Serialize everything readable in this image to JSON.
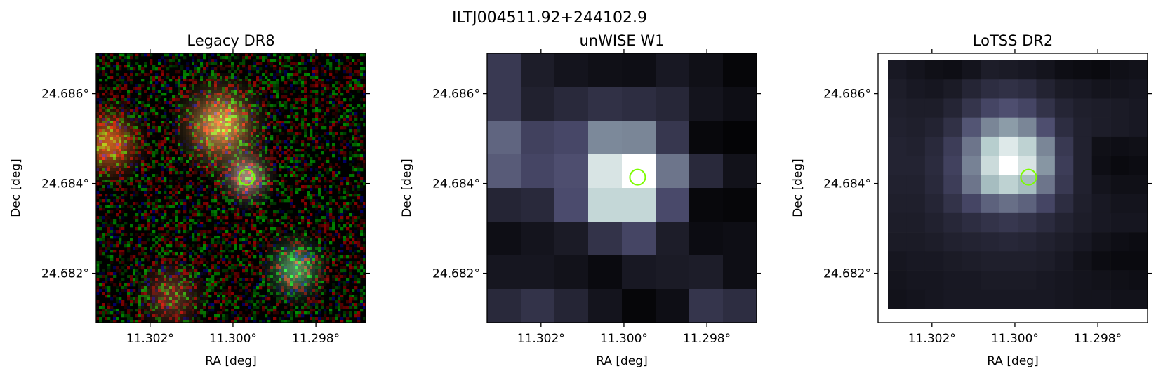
{
  "figure": {
    "suptitle": "ILTJ004511.92+244102.9",
    "marker_color": "#7cfc00"
  },
  "axes": {
    "xlabel": "RA [deg]",
    "ylabel": "Dec [deg]",
    "xticks": [
      {
        "value": 11.302,
        "label": "11.302°"
      },
      {
        "value": 11.3,
        "label": "11.300°"
      },
      {
        "value": 11.298,
        "label": "11.298°"
      }
    ],
    "yticks": [
      {
        "value": 24.686,
        "label": "24.686°"
      },
      {
        "value": 24.684,
        "label": "24.684°"
      },
      {
        "value": 24.682,
        "label": "24.682°"
      }
    ],
    "ra_range": [
      11.3033,
      11.2968
    ],
    "dec_range": [
      24.6809,
      24.6869
    ]
  },
  "source_position": {
    "ra": 11.29967,
    "dec": 24.68414
  },
  "panels": [
    {
      "id": "legacy",
      "title": "Legacy DR8"
    },
    {
      "id": "unwise",
      "title": "unWISE W1"
    },
    {
      "id": "lotss",
      "title": "LoTSS DR2"
    }
  ],
  "unwise_grid": [
    [
      0.28,
      0.14,
      0.1,
      0.08,
      0.07,
      0.12,
      0.08,
      0.03
    ],
    [
      0.28,
      0.16,
      0.2,
      0.24,
      0.22,
      0.19,
      0.1,
      0.07
    ],
    [
      0.45,
      0.32,
      0.35,
      0.56,
      0.55,
      0.27,
      0.04,
      0.02
    ],
    [
      0.42,
      0.34,
      0.38,
      0.88,
      1.0,
      0.5,
      0.2,
      0.09
    ],
    [
      0.18,
      0.2,
      0.37,
      0.82,
      0.82,
      0.36,
      0.04,
      0.03
    ],
    [
      0.07,
      0.1,
      0.13,
      0.25,
      0.34,
      0.14,
      0.06,
      0.07
    ],
    [
      0.11,
      0.11,
      0.09,
      0.05,
      0.12,
      0.13,
      0.14,
      0.07
    ],
    [
      0.2,
      0.25,
      0.18,
      0.1,
      0.03,
      0.07,
      0.26,
      0.22
    ]
  ],
  "lotss_grid": [
    [
      0.12,
      0.1,
      0.08,
      0.07,
      0.1,
      0.14,
      0.13,
      0.12,
      0.1,
      0.07,
      0.06,
      0.05,
      0.08,
      0.09
    ],
    [
      0.14,
      0.12,
      0.11,
      0.13,
      0.18,
      0.22,
      0.24,
      0.22,
      0.17,
      0.13,
      0.12,
      0.1,
      0.1,
      0.11
    ],
    [
      0.15,
      0.14,
      0.14,
      0.18,
      0.26,
      0.34,
      0.38,
      0.34,
      0.25,
      0.18,
      0.15,
      0.14,
      0.13,
      0.12
    ],
    [
      0.16,
      0.15,
      0.17,
      0.24,
      0.4,
      0.55,
      0.62,
      0.55,
      0.38,
      0.22,
      0.16,
      0.14,
      0.13,
      0.12
    ],
    [
      0.17,
      0.16,
      0.2,
      0.3,
      0.5,
      0.78,
      0.9,
      0.8,
      0.55,
      0.28,
      0.16,
      0.08,
      0.07,
      0.08
    ],
    [
      0.17,
      0.17,
      0.21,
      0.32,
      0.54,
      0.84,
      1.0,
      0.88,
      0.6,
      0.3,
      0.16,
      0.07,
      0.05,
      0.06
    ],
    [
      0.16,
      0.16,
      0.2,
      0.3,
      0.5,
      0.72,
      0.8,
      0.72,
      0.5,
      0.28,
      0.16,
      0.1,
      0.08,
      0.08
    ],
    [
      0.15,
      0.15,
      0.18,
      0.25,
      0.34,
      0.44,
      0.48,
      0.44,
      0.34,
      0.22,
      0.15,
      0.12,
      0.1,
      0.1
    ],
    [
      0.14,
      0.14,
      0.16,
      0.19,
      0.22,
      0.25,
      0.27,
      0.25,
      0.21,
      0.17,
      0.14,
      0.12,
      0.11,
      0.11
    ],
    [
      0.13,
      0.13,
      0.14,
      0.16,
      0.17,
      0.18,
      0.19,
      0.18,
      0.16,
      0.14,
      0.12,
      0.09,
      0.07,
      0.06
    ],
    [
      0.11,
      0.12,
      0.12,
      0.13,
      0.14,
      0.15,
      0.15,
      0.15,
      0.14,
      0.12,
      0.09,
      0.06,
      0.05,
      0.05
    ],
    [
      0.1,
      0.11,
      0.11,
      0.12,
      0.12,
      0.13,
      0.13,
      0.13,
      0.12,
      0.11,
      0.1,
      0.09,
      0.08,
      0.07
    ],
    [
      0.09,
      0.1,
      0.11,
      0.12,
      0.12,
      0.12,
      0.12,
      0.12,
      0.12,
      0.11,
      0.1,
      0.1,
      0.09,
      0.09
    ]
  ],
  "legacy_sources": [
    {
      "ra": 11.3003,
      "dec": 24.6853,
      "sigma": 0.00048,
      "rgb": [
        0.75,
        0.55,
        0.28
      ]
    },
    {
      "ra": 11.303,
      "dec": 24.6849,
      "sigma": 0.0004,
      "rgb": [
        0.75,
        0.35,
        0.12
      ]
    },
    {
      "ra": 11.29967,
      "dec": 24.68414,
      "sigma": 0.0003,
      "rgb": [
        0.6,
        0.5,
        0.45
      ]
    },
    {
      "ra": 11.2985,
      "dec": 24.6821,
      "sigma": 0.00035,
      "rgb": [
        0.3,
        0.55,
        0.35
      ]
    },
    {
      "ra": 11.3015,
      "dec": 24.6815,
      "sigma": 0.0004,
      "rgb": [
        0.35,
        0.18,
        0.12
      ]
    }
  ]
}
